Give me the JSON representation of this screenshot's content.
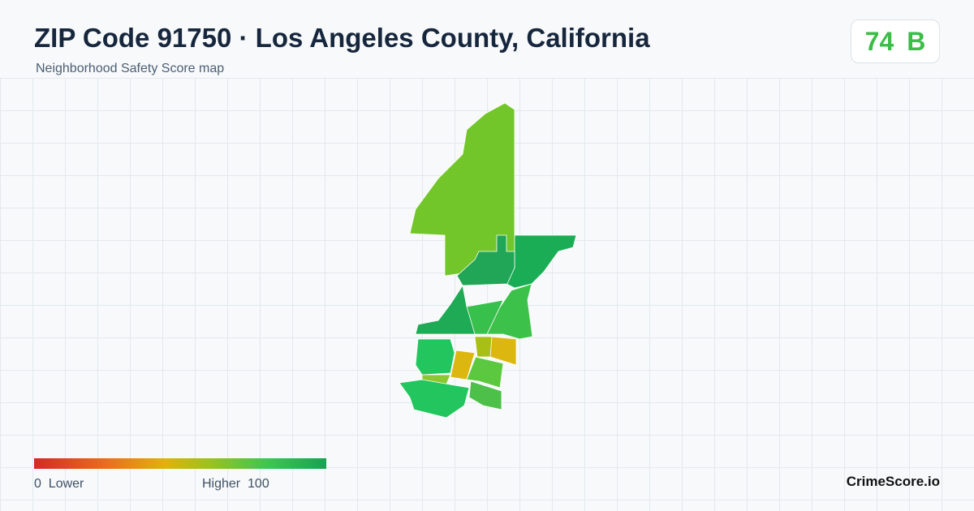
{
  "header": {
    "title": "ZIP Code 91750 · Los Angeles County, California",
    "subtitle": "Neighborhood Safety Score map"
  },
  "score": {
    "value": 74,
    "grade": "B"
  },
  "legend": {
    "min": 0,
    "min_label": "Lower",
    "max_label": "Higher",
    "max": 100
  },
  "brand": "CrimeScore.io"
}
